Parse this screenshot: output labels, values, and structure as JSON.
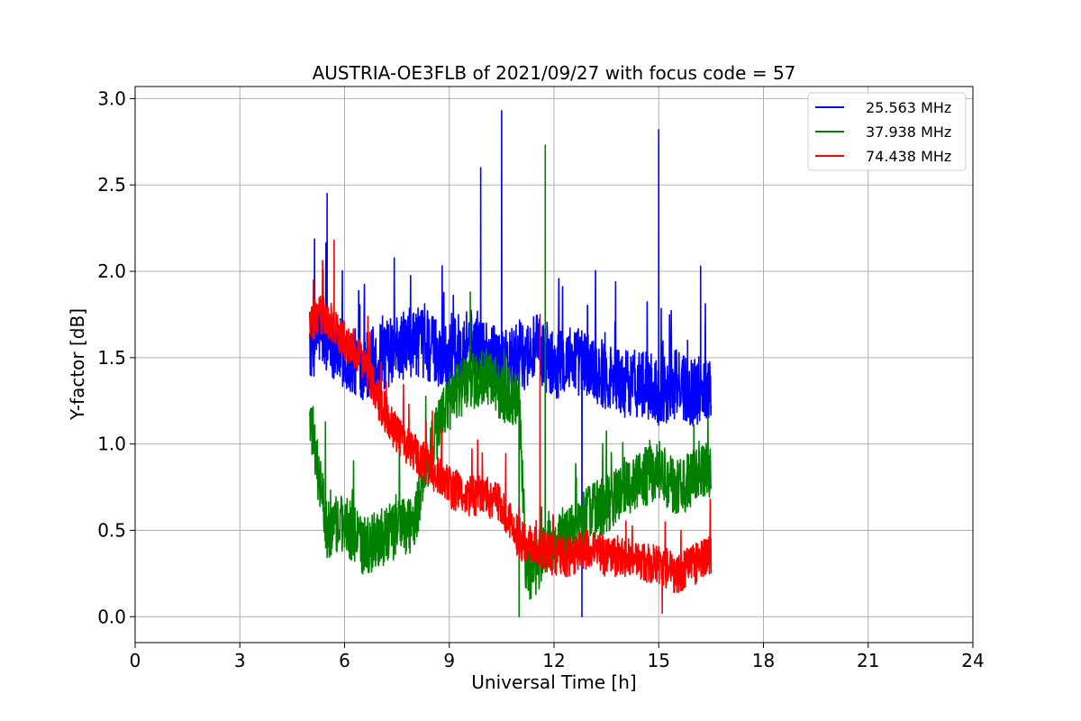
{
  "chart_data": {
    "type": "line",
    "title": "AUSTRIA-OE3FLB of 2021/09/27 with focus code = 57",
    "xlabel": "Universal Time [h]",
    "ylabel": "Y-factor [dB]",
    "xlim": [
      0,
      24
    ],
    "ylim": [
      -0.15,
      3.07
    ],
    "xticks": [
      0,
      3,
      6,
      9,
      12,
      15,
      18,
      21,
      24
    ],
    "xtick_labels": [
      "0",
      "3",
      "6",
      "9",
      "12",
      "15",
      "18",
      "21",
      "24"
    ],
    "yticks": [
      0.0,
      0.5,
      1.0,
      1.5,
      2.0,
      2.5,
      3.0
    ],
    "ytick_labels": [
      "0.0",
      "0.5",
      "1.0",
      "1.5",
      "2.0",
      "2.5",
      "3.0"
    ],
    "grid": true,
    "legend_position": "top-right",
    "series": [
      {
        "name": "25.563 MHz",
        "color": "#0000ff",
        "x": [
          5.0,
          5.3,
          5.6,
          6.0,
          6.5,
          7.0,
          7.5,
          8.0,
          8.5,
          9.0,
          9.5,
          10.0,
          10.5,
          11.0,
          11.5,
          12.0,
          12.5,
          13.0,
          13.5,
          14.0,
          14.5,
          15.0,
          15.5,
          16.0,
          16.5
        ],
        "values": [
          1.55,
          1.65,
          1.6,
          1.5,
          1.45,
          1.5,
          1.55,
          1.6,
          1.55,
          1.5,
          1.6,
          1.55,
          1.45,
          1.5,
          1.55,
          1.45,
          1.5,
          1.45,
          1.4,
          1.35,
          1.35,
          1.3,
          1.35,
          1.3,
          1.35
        ],
        "spikes": [
          {
            "x": 5.5,
            "y": 2.45
          },
          {
            "x": 9.9,
            "y": 2.6
          },
          {
            "x": 10.5,
            "y": 2.93
          },
          {
            "x": 15.0,
            "y": 2.82
          },
          {
            "x": 16.2,
            "y": 2.03
          },
          {
            "x": 12.8,
            "y": 0.0
          }
        ]
      },
      {
        "name": "37.938 MHz",
        "color": "#008000",
        "x": [
          5.0,
          5.2,
          5.5,
          6.0,
          6.5,
          7.0,
          7.5,
          8.0,
          8.5,
          9.0,
          9.5,
          10.0,
          10.5,
          11.0,
          11.2,
          11.5,
          12.0,
          12.5,
          13.0,
          13.5,
          14.0,
          14.5,
          15.0,
          15.5,
          16.0,
          16.5
        ],
        "values": [
          1.2,
          0.9,
          0.5,
          0.55,
          0.4,
          0.45,
          0.5,
          0.55,
          1.0,
          1.25,
          1.35,
          1.4,
          1.3,
          1.25,
          0.25,
          0.3,
          0.45,
          0.5,
          0.6,
          0.65,
          0.75,
          0.8,
          0.85,
          0.75,
          0.8,
          0.85
        ],
        "spikes": [
          {
            "x": 11.75,
            "y": 2.73
          },
          {
            "x": 9.6,
            "y": 1.88
          },
          {
            "x": 11.0,
            "y": 0.0
          }
        ]
      },
      {
        "name": "74.438 MHz",
        "color": "#ff0000",
        "x": [
          5.0,
          5.3,
          5.6,
          6.0,
          6.5,
          7.0,
          7.5,
          8.0,
          8.5,
          9.0,
          9.5,
          10.0,
          10.5,
          11.0,
          11.5,
          12.0,
          12.5,
          13.0,
          13.5,
          14.0,
          14.5,
          15.0,
          15.5,
          16.0,
          16.5
        ],
        "values": [
          1.7,
          1.75,
          1.7,
          1.6,
          1.5,
          1.25,
          1.05,
          0.95,
          0.85,
          0.75,
          0.7,
          0.7,
          0.65,
          0.45,
          0.4,
          0.35,
          0.35,
          0.4,
          0.35,
          0.35,
          0.3,
          0.3,
          0.25,
          0.3,
          0.35
        ],
        "spikes": [
          {
            "x": 5.7,
            "y": 2.18
          },
          {
            "x": 11.6,
            "y": 1.75
          },
          {
            "x": 15.1,
            "y": 0.02
          }
        ]
      }
    ]
  }
}
